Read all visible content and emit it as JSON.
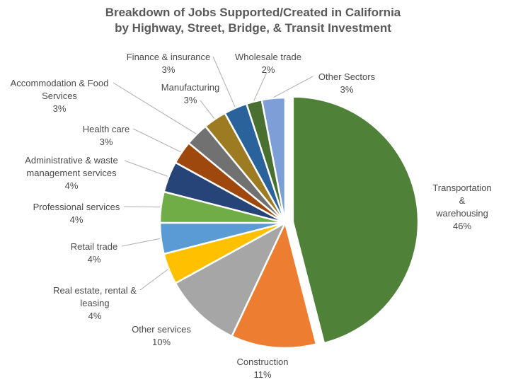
{
  "title": {
    "line1": "Breakdown of Jobs Supported/Created in California",
    "line2": "by Highway, Street, Bridge, & Transit Investment"
  },
  "chart_data": {
    "type": "pie",
    "title": "Breakdown of Jobs Supported/Created in California by Highway, Street, Bridge, & Transit Investment",
    "unit": "percent",
    "total": 100,
    "start_angle_deg": 0,
    "direction": "clockwise",
    "legend": "none",
    "label_style": "outside-with-leader-lines",
    "title_color": "#595959",
    "label_text_color": "#4a4a4a",
    "leader_line_color": "#aeaeae",
    "slice_border_color": "#ffffff",
    "slices": [
      {
        "label": "Transportation & warehousing",
        "value": 46,
        "pct": "46%",
        "color": "#4f8139",
        "exploded": true,
        "lines": [
          "Transportation &",
          "warehousing",
          "46%"
        ]
      },
      {
        "label": "Construction",
        "value": 11,
        "pct": "11%",
        "color": "#ed7d31",
        "exploded": false,
        "lines": [
          "Construction",
          "11%"
        ]
      },
      {
        "label": "Other services",
        "value": 10,
        "pct": "10%",
        "color": "#a6a6a6",
        "exploded": false,
        "lines": [
          "Other services",
          "10%"
        ]
      },
      {
        "label": "Real estate, rental & leasing",
        "value": 4,
        "pct": "4%",
        "color": "#ffc000",
        "exploded": false,
        "lines": [
          "Real estate, rental &",
          "leasing",
          "4%"
        ]
      },
      {
        "label": "Retail trade",
        "value": 4,
        "pct": "4%",
        "color": "#5b9bd5",
        "exploded": false,
        "lines": [
          "Retail trade",
          "4%"
        ]
      },
      {
        "label": "Professional services",
        "value": 4,
        "pct": "4%",
        "color": "#70ad47",
        "exploded": false,
        "lines": [
          "Professional services",
          "4%"
        ]
      },
      {
        "label": "Administrative & waste management services",
        "value": 4,
        "pct": "4%",
        "color": "#264478",
        "exploded": false,
        "lines": [
          "Administrative & waste",
          "management services",
          "4%"
        ]
      },
      {
        "label": "Health care",
        "value": 3,
        "pct": "3%",
        "color": "#9e480e",
        "exploded": false,
        "lines": [
          "Health care",
          "3%"
        ]
      },
      {
        "label": "Accommodation & Food Services",
        "value": 3,
        "pct": "3%",
        "color": "#717171",
        "exploded": false,
        "lines": [
          "Accommodation & Food",
          "Services",
          "3%"
        ]
      },
      {
        "label": "Manufacturing",
        "value": 3,
        "pct": "3%",
        "color": "#9c7b22",
        "exploded": false,
        "lines": [
          "Manufacturing",
          "3%"
        ]
      },
      {
        "label": "Finance & insurance",
        "value": 3,
        "pct": "3%",
        "color": "#2a639c",
        "exploded": false,
        "lines": [
          "Finance & insurance",
          "3%"
        ]
      },
      {
        "label": "Wholesale trade",
        "value": 2,
        "pct": "2%",
        "color": "#4a7031",
        "exploded": false,
        "lines": [
          "Wholesale trade",
          "2%"
        ]
      },
      {
        "label": "Other Sectors",
        "value": 3,
        "pct": "3%",
        "color": "#7d9ed6",
        "exploded": false,
        "lines": [
          "Other Sectors",
          "3%"
        ]
      }
    ]
  }
}
